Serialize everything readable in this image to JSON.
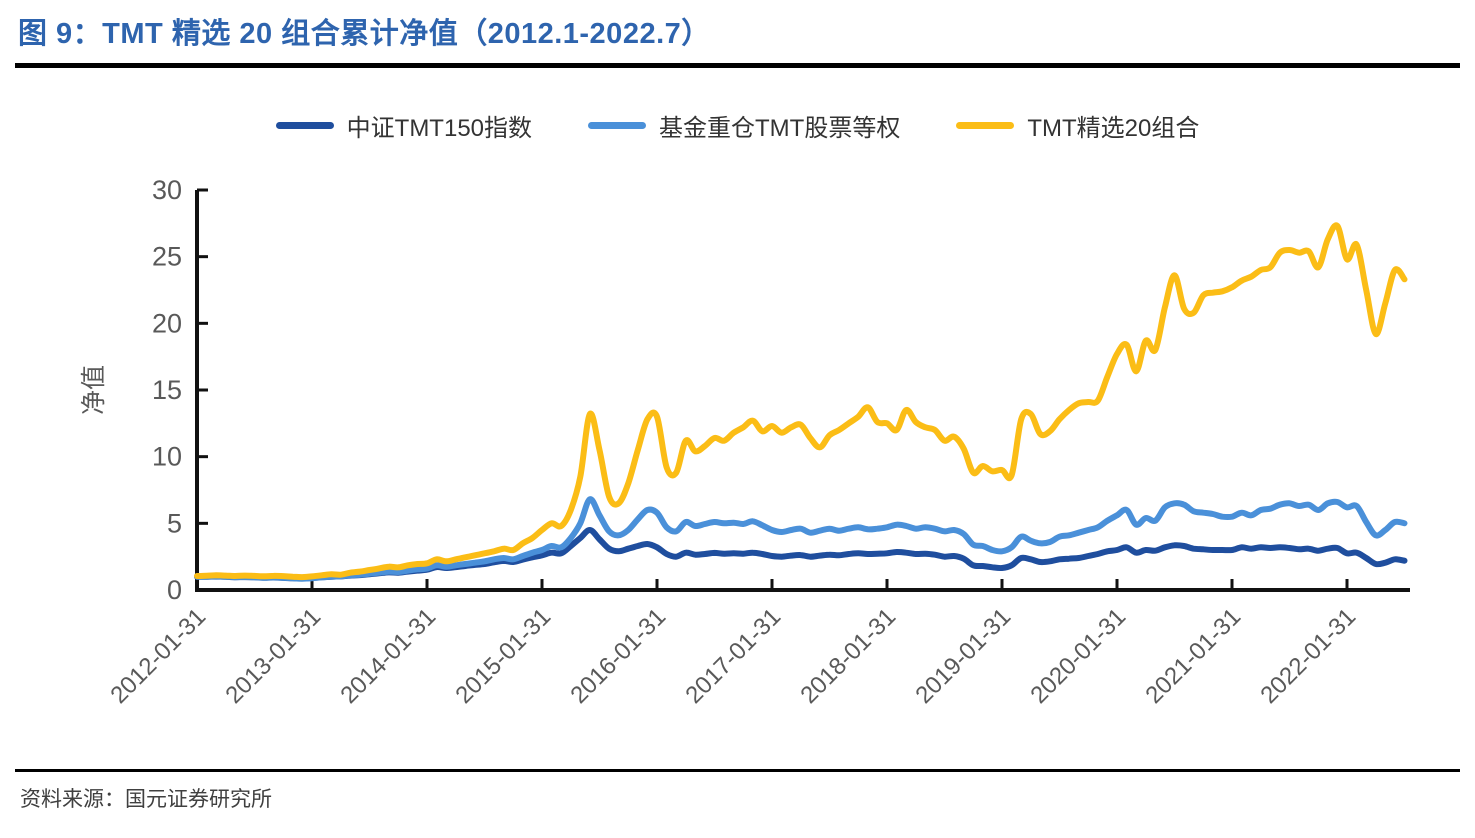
{
  "figure": {
    "title": "图 9：TMT 精选 20 组合累计净值（2012.1-2022.7）",
    "source": "资料来源：国元证券研究所"
  },
  "colors": {
    "title_blue": "#2E64AE",
    "axis": "#111111",
    "tick_label_gray": "#595959",
    "legend_text": "#333333",
    "rule_black": "#000000"
  },
  "chart_data": {
    "type": "line",
    "title": "TMT 精选 20 组合累计净值（2012.1-2022.7）",
    "xlabel": "",
    "ylabel": "净值",
    "ylim": [
      0,
      30
    ],
    "yticks": [
      0,
      5,
      10,
      15,
      20,
      25,
      30
    ],
    "grid": false,
    "legend_position": "top",
    "x_unit": "month",
    "x_start": "2012-01-31",
    "x_end": "2022-07-31",
    "x_tick_labels": [
      "2012-01-31",
      "2013-01-31",
      "2014-01-31",
      "2015-01-31",
      "2016-01-31",
      "2017-01-31",
      "2018-01-31",
      "2019-01-31",
      "2020-01-31",
      "2021-01-31",
      "2022-01-31"
    ],
    "x_tick_month_indices": [
      0,
      12,
      24,
      36,
      48,
      60,
      72,
      84,
      96,
      108,
      120
    ],
    "series": [
      {
        "name": "中证TMT150指数",
        "color": "#1F4E9E",
        "values": [
          1.0,
          1.0,
          1.01,
          0.99,
          0.96,
          0.97,
          0.95,
          0.92,
          0.94,
          0.91,
          0.88,
          0.86,
          0.9,
          0.96,
          1.0,
          1.02,
          1.08,
          1.12,
          1.18,
          1.25,
          1.32,
          1.3,
          1.38,
          1.45,
          1.52,
          1.72,
          1.65,
          1.72,
          1.8,
          1.88,
          1.95,
          2.08,
          2.18,
          2.1,
          2.28,
          2.45,
          2.6,
          2.8,
          2.75,
          3.3,
          3.9,
          4.5,
          3.8,
          3.1,
          2.9,
          3.1,
          3.3,
          3.45,
          3.2,
          2.7,
          2.5,
          2.8,
          2.65,
          2.7,
          2.78,
          2.72,
          2.75,
          2.72,
          2.8,
          2.7,
          2.55,
          2.5,
          2.58,
          2.62,
          2.5,
          2.58,
          2.65,
          2.6,
          2.7,
          2.75,
          2.7,
          2.72,
          2.75,
          2.85,
          2.8,
          2.7,
          2.72,
          2.65,
          2.5,
          2.55,
          2.35,
          1.85,
          1.8,
          1.7,
          1.65,
          1.85,
          2.4,
          2.3,
          2.1,
          2.15,
          2.3,
          2.35,
          2.4,
          2.55,
          2.7,
          2.9,
          3.0,
          3.2,
          2.8,
          3.0,
          2.95,
          3.2,
          3.35,
          3.3,
          3.1,
          3.05,
          3.0,
          3.0,
          3.0,
          3.2,
          3.1,
          3.2,
          3.15,
          3.2,
          3.15,
          3.05,
          3.1,
          2.95,
          3.1,
          3.15,
          2.75,
          2.8,
          2.4,
          1.95,
          2.05,
          2.3,
          2.2
        ]
      },
      {
        "name": "基金重仓TMT股票等权",
        "color": "#4A90D9",
        "values": [
          1.0,
          1.0,
          1.02,
          1.0,
          0.97,
          0.98,
          0.96,
          0.93,
          0.95,
          0.92,
          0.88,
          0.85,
          0.88,
          0.95,
          1.0,
          1.02,
          1.1,
          1.15,
          1.22,
          1.3,
          1.38,
          1.35,
          1.45,
          1.55,
          1.62,
          1.85,
          1.75,
          1.85,
          1.95,
          2.05,
          2.15,
          2.3,
          2.4,
          2.3,
          2.55,
          2.8,
          3.0,
          3.3,
          3.2,
          3.9,
          5.0,
          6.8,
          5.6,
          4.4,
          4.1,
          4.5,
          5.3,
          6.0,
          5.8,
          4.7,
          4.4,
          5.1,
          4.8,
          4.95,
          5.1,
          5.0,
          5.05,
          4.95,
          5.15,
          4.85,
          4.5,
          4.35,
          4.5,
          4.6,
          4.3,
          4.45,
          4.6,
          4.45,
          4.6,
          4.7,
          4.55,
          4.6,
          4.7,
          4.9,
          4.8,
          4.6,
          4.7,
          4.6,
          4.4,
          4.5,
          4.2,
          3.4,
          3.3,
          3.0,
          2.9,
          3.2,
          4.0,
          3.7,
          3.5,
          3.6,
          4.0,
          4.1,
          4.3,
          4.5,
          4.7,
          5.2,
          5.6,
          6.0,
          4.9,
          5.4,
          5.2,
          6.2,
          6.5,
          6.4,
          5.9,
          5.8,
          5.7,
          5.5,
          5.5,
          5.8,
          5.6,
          6.0,
          6.1,
          6.4,
          6.5,
          6.3,
          6.4,
          6.0,
          6.5,
          6.6,
          6.2,
          6.3,
          5.1,
          4.1,
          4.5,
          5.1,
          5.0
        ]
      },
      {
        "name": "TMT精选20组合",
        "color": "#FBBD16",
        "values": [
          1.05,
          1.07,
          1.1,
          1.08,
          1.05,
          1.08,
          1.06,
          1.03,
          1.06,
          1.04,
          1.0,
          0.97,
          1.02,
          1.1,
          1.18,
          1.15,
          1.3,
          1.38,
          1.5,
          1.62,
          1.75,
          1.7,
          1.85,
          1.95,
          2.0,
          2.3,
          2.15,
          2.3,
          2.45,
          2.6,
          2.75,
          2.9,
          3.1,
          3.0,
          3.5,
          3.9,
          4.5,
          5.0,
          4.8,
          6.0,
          8.5,
          13.2,
          10.5,
          7.0,
          6.5,
          8.0,
          10.5,
          12.8,
          13.0,
          9.2,
          8.8,
          11.2,
          10.4,
          10.8,
          11.4,
          11.2,
          11.8,
          12.2,
          12.7,
          11.9,
          12.3,
          11.8,
          12.2,
          12.4,
          11.4,
          10.7,
          11.6,
          12.0,
          12.5,
          13.0,
          13.7,
          12.6,
          12.5,
          12.0,
          13.5,
          12.6,
          12.2,
          12.0,
          11.2,
          11.5,
          10.6,
          8.8,
          9.3,
          8.9,
          9.0,
          8.6,
          12.8,
          13.2,
          11.7,
          11.9,
          12.8,
          13.5,
          14.0,
          14.1,
          14.2,
          16.0,
          17.7,
          18.4,
          16.4,
          18.7,
          18.0,
          21.2,
          23.6,
          21.1,
          20.8,
          22.1,
          22.3,
          22.4,
          22.7,
          23.2,
          23.5,
          24.0,
          24.2,
          25.3,
          25.5,
          25.3,
          25.4,
          24.2,
          26.3,
          27.3,
          24.8,
          25.9,
          22.5,
          19.2,
          21.5,
          24.0,
          23.3
        ]
      }
    ]
  }
}
